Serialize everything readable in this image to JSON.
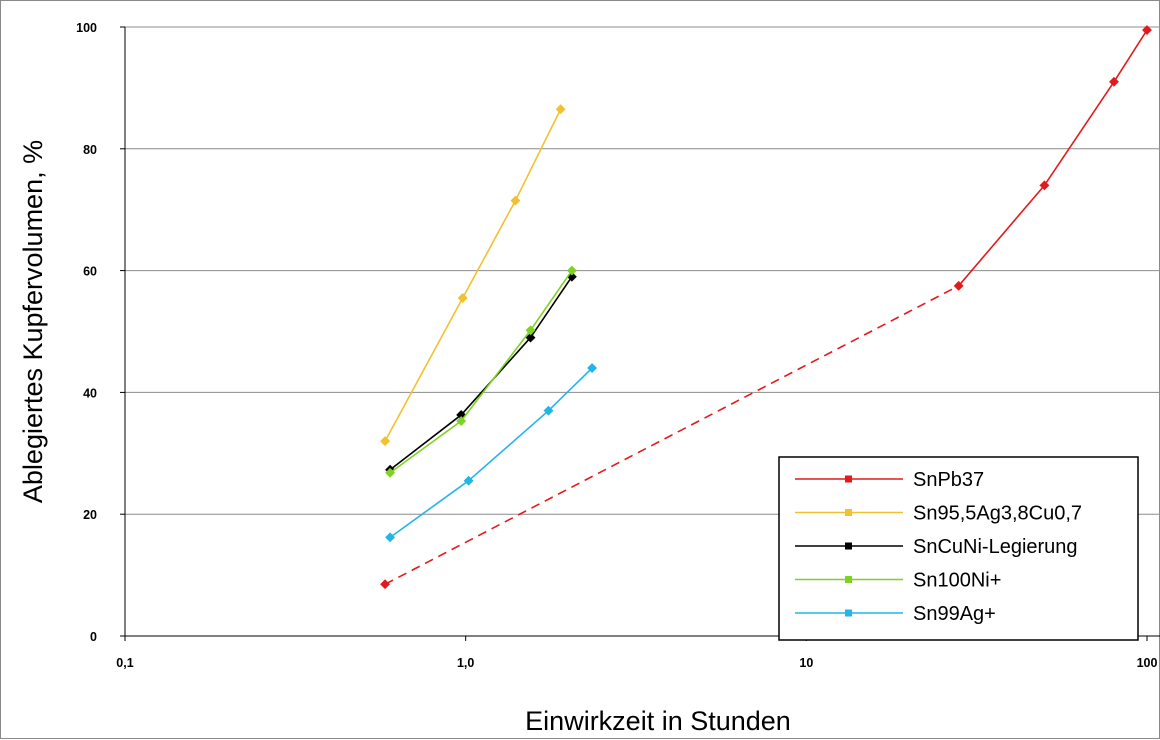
{
  "chart_data": {
    "type": "line",
    "title": "",
    "xlabel": "Einwirkzeit in Stunden",
    "ylabel": "Ablegiertes Kupfervolumen, %",
    "x_scale": "log",
    "xlim": [
      0.1,
      100
    ],
    "ylim": [
      0,
      100
    ],
    "x_ticks": [
      {
        "value": 0.1,
        "label": "0,1"
      },
      {
        "value": 1,
        "label": "1,0"
      },
      {
        "value": 10,
        "label": "10"
      },
      {
        "value": 100,
        "label": "100"
      }
    ],
    "y_ticks": [
      {
        "value": 0,
        "label": "0"
      },
      {
        "value": 20,
        "label": "20"
      },
      {
        "value": 40,
        "label": "40"
      },
      {
        "value": 60,
        "label": "60"
      },
      {
        "value": 80,
        "label": "80"
      },
      {
        "value": 100,
        "label": "100"
      }
    ],
    "grid": "horizontal",
    "legend_position": "bottom-right",
    "series": [
      {
        "name": "SnPb37",
        "color": "#e31a1c",
        "points": [
          [
            0.58,
            8.5
          ],
          [
            28,
            57.5
          ],
          [
            50,
            74
          ],
          [
            80,
            91
          ],
          [
            100,
            99.5
          ]
        ],
        "dashed_segments": [
          0
        ]
      },
      {
        "name": "Sn95,5Ag3,8Cu0,7",
        "color": "#f2c12e",
        "points": [
          [
            0.58,
            32
          ],
          [
            0.98,
            55.5
          ],
          [
            1.4,
            71.5
          ],
          [
            1.9,
            86.5
          ]
        ]
      },
      {
        "name": "SnCuNi-Legierung",
        "color": "#000000",
        "points": [
          [
            0.6,
            27.3
          ],
          [
            0.97,
            36.3
          ],
          [
            1.55,
            49
          ],
          [
            2.05,
            59
          ]
        ]
      },
      {
        "name": "Sn100Ni+",
        "color": "#7ed321",
        "points": [
          [
            0.6,
            26.8
          ],
          [
            0.97,
            35.3
          ],
          [
            1.55,
            50.2
          ],
          [
            2.05,
            60
          ]
        ]
      },
      {
        "name": "Sn99Ag+",
        "color": "#22b5e8",
        "points": [
          [
            0.6,
            16.2
          ],
          [
            1.02,
            25.5
          ],
          [
            1.75,
            37
          ],
          [
            2.35,
            44
          ]
        ]
      }
    ]
  }
}
